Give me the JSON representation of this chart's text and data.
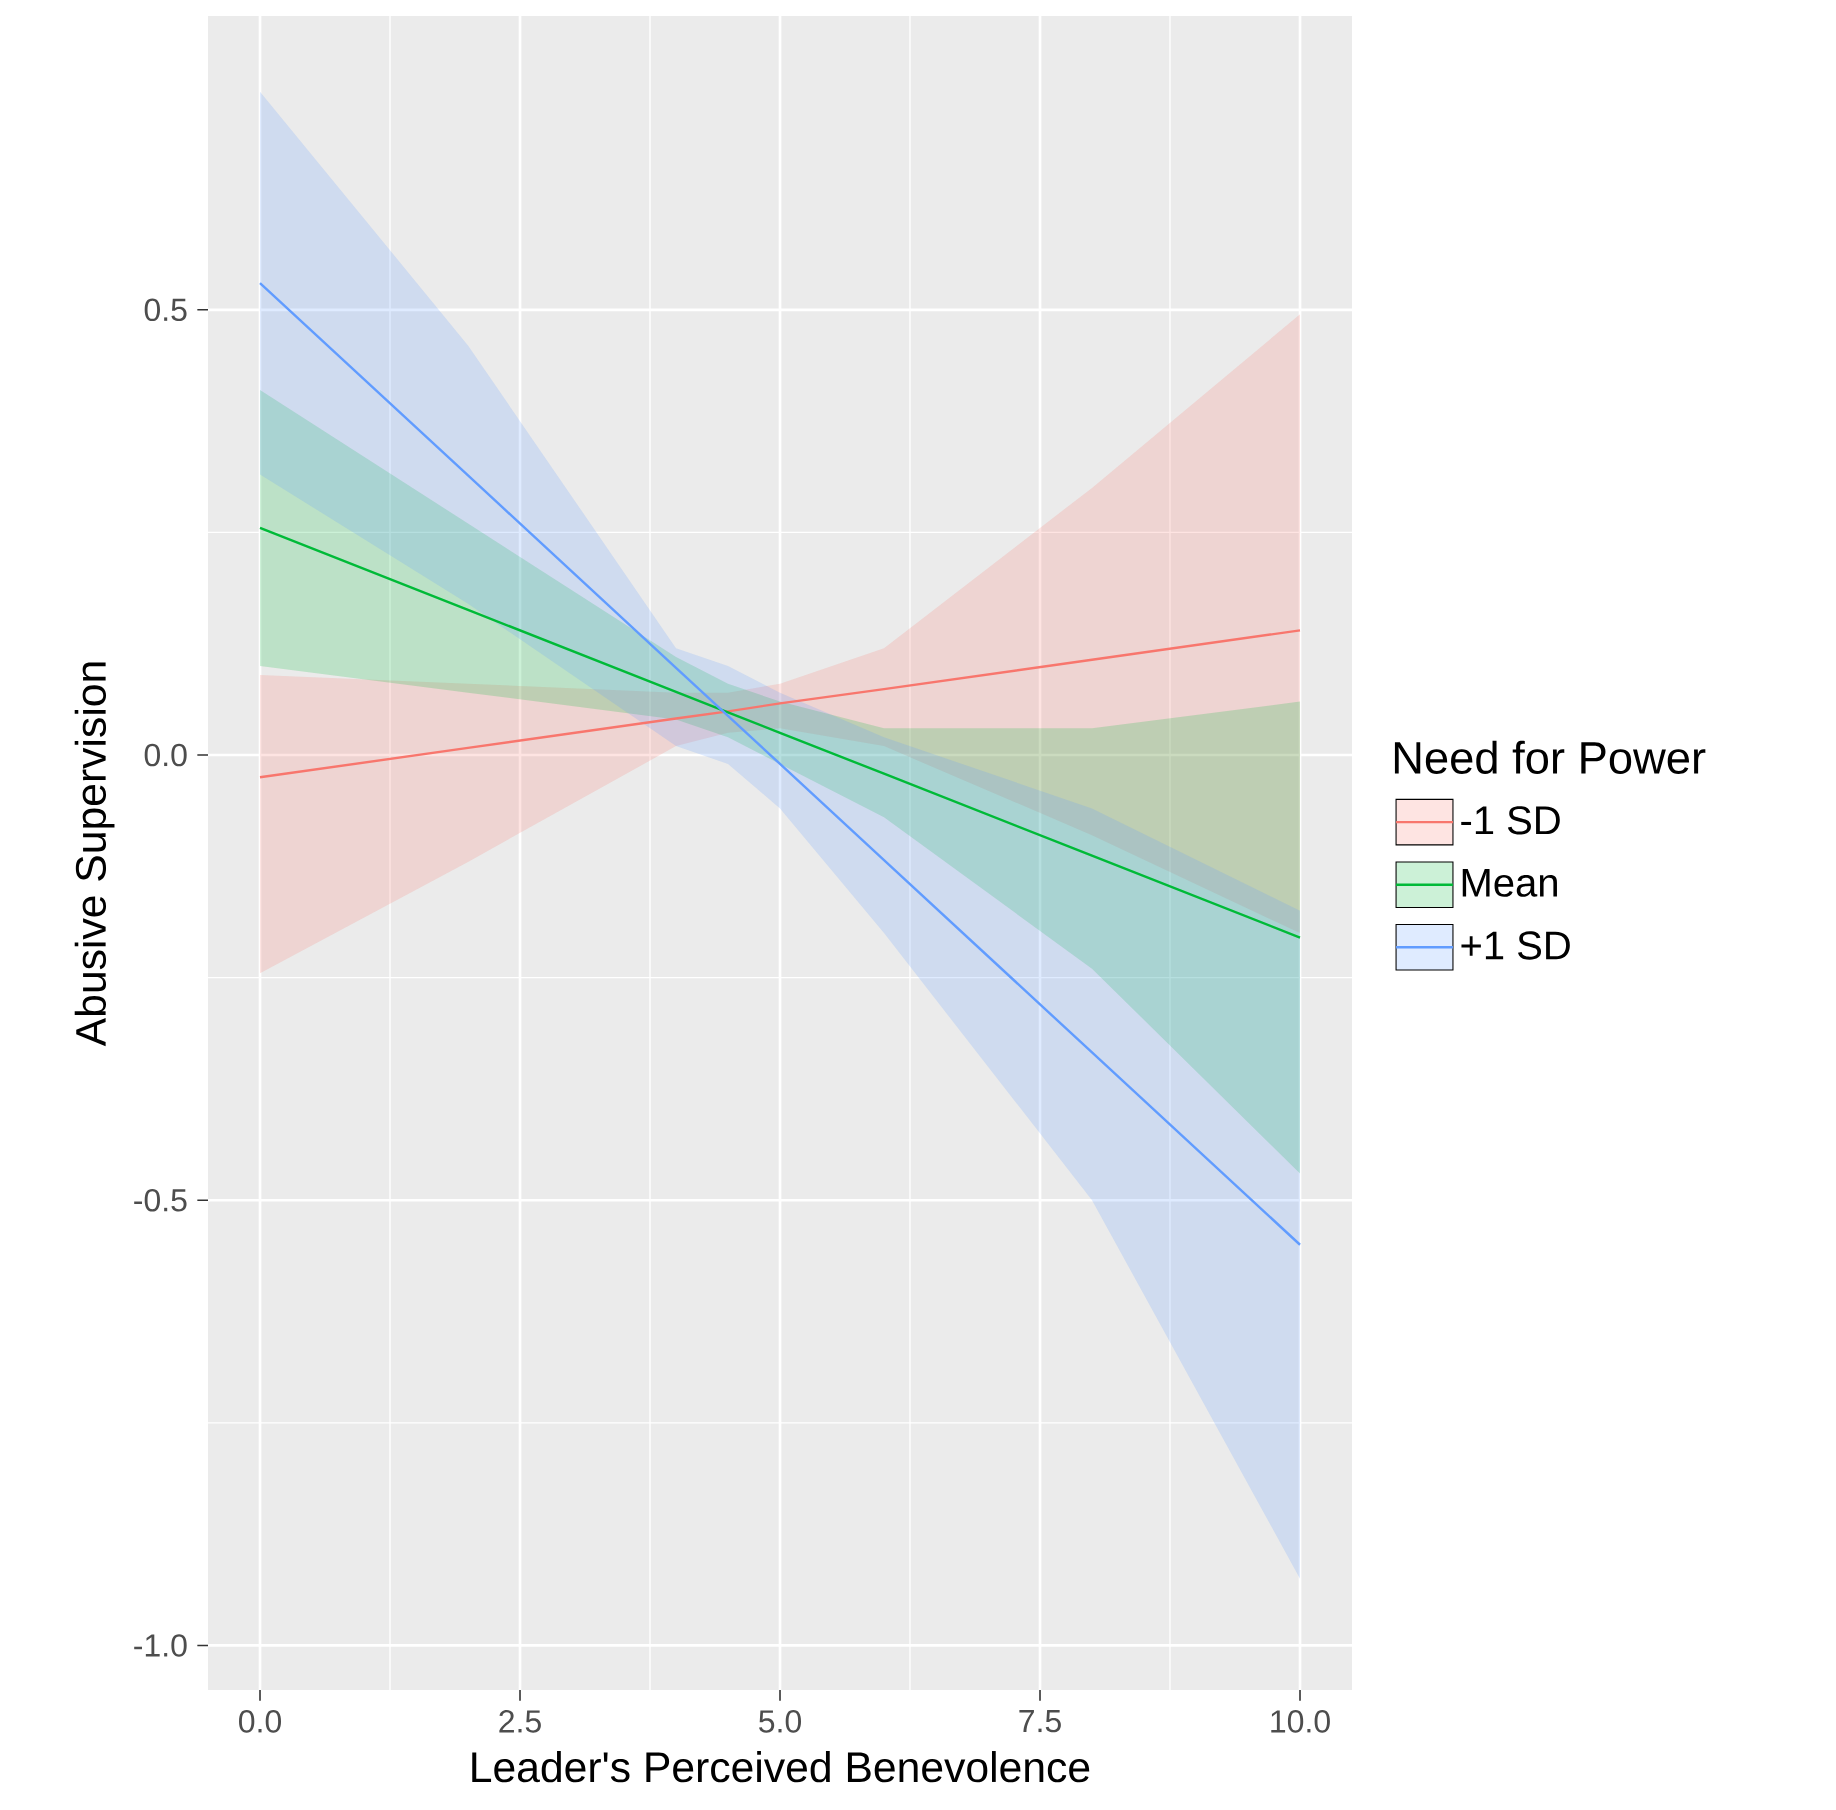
{
  "chart_data": {
    "type": "line",
    "xlabel": "Leader's Perceived Benevolence",
    "ylabel": "Abusive Supervision",
    "legend_title": "Need for Power",
    "series": [
      {
        "name": "-1 SD",
        "color": "#f8766d",
        "x": [
          0,
          2,
          4,
          4.5,
          5,
          6,
          8,
          10
        ],
        "values": [
          -0.025,
          0.008,
          0.041,
          0.049,
          0.058,
          0.074,
          0.107,
          0.14
        ],
        "lower": [
          -0.245,
          -0.12,
          0.01,
          0.025,
          0.03,
          0.01,
          -0.09,
          -0.2
        ],
        "upper": [
          0.09,
          0.08,
          0.07,
          0.07,
          0.08,
          0.12,
          0.3,
          0.495
        ]
      },
      {
        "name": "Mean",
        "color": "#00ba38",
        "x": [
          0,
          2,
          4,
          4.5,
          5,
          6,
          8,
          10
        ],
        "values": [
          0.255,
          0.163,
          0.071,
          0.048,
          0.025,
          -0.021,
          -0.113,
          -0.205
        ],
        "lower": [
          0.1,
          0.07,
          0.04,
          0.02,
          -0.01,
          -0.07,
          -0.24,
          -0.47
        ],
        "upper": [
          0.41,
          0.26,
          0.11,
          0.08,
          0.06,
          0.03,
          0.03,
          0.06
        ]
      },
      {
        "name": "+1 SD",
        "color": "#619cff",
        "x": [
          0,
          2,
          4,
          4.5,
          5,
          6,
          8,
          10
        ],
        "values": [
          0.53,
          0.314,
          0.098,
          0.044,
          -0.01,
          -0.118,
          -0.334,
          -0.55
        ],
        "lower": [
          0.315,
          0.17,
          0.01,
          -0.01,
          -0.06,
          -0.2,
          -0.5,
          -0.925
        ],
        "upper": [
          0.745,
          0.46,
          0.12,
          0.1,
          0.07,
          0.02,
          -0.06,
          -0.175
        ]
      }
    ],
    "xlim": [
      -0.5,
      10.5
    ],
    "ylim": [
      -1.05,
      0.83
    ],
    "xticks": [
      {
        "value": 0,
        "label": "0.0"
      },
      2.5,
      {
        "value": 5,
        "label": "5.0"
      },
      7.5,
      {
        "value": 10,
        "label": "10.0"
      }
    ],
    "yticks": [
      {
        "value": -1,
        "label": "-1.0"
      },
      -0.5,
      {
        "value": 0,
        "label": "0.0"
      },
      0.5
    ],
    "grid": true,
    "legend": "right"
  }
}
